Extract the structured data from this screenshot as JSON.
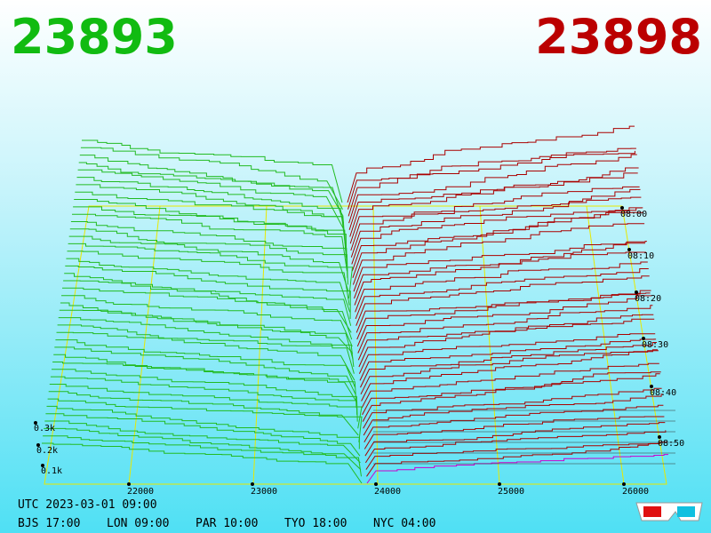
{
  "header": {
    "bid": "23893",
    "ask": "23898"
  },
  "axis": {
    "price_ticks": [
      "22000",
      "23000",
      "24000",
      "25000",
      "26000"
    ],
    "time_ticks": [
      "08:00",
      "08:10",
      "08:20",
      "08:30",
      "08:40",
      "08:50"
    ],
    "volume_ticks": [
      "0.3k",
      "0.2k",
      "0.1k"
    ]
  },
  "footer": {
    "utc": "UTC 2023-03-01 09:00",
    "zones": [
      "BJS 17:00",
      "LON 09:00",
      "PAR 10:00",
      "TYO 18:00",
      "NYC 04:00"
    ]
  }
}
